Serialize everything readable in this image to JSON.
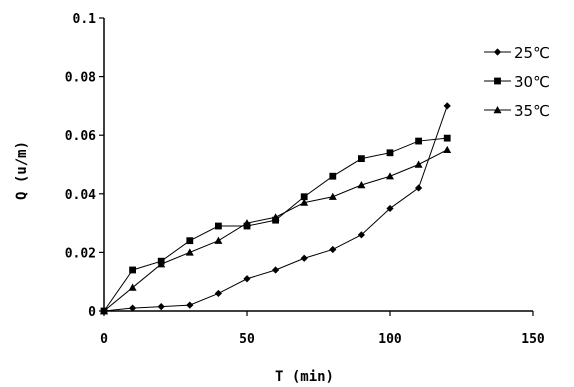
{
  "chart_data": {
    "type": "line",
    "title": "",
    "xlabel": "T (min)",
    "ylabel": "Q (u/m)",
    "xlim": [
      0,
      150
    ],
    "ylim": [
      0,
      0.1
    ],
    "xticks": [
      0,
      50,
      100,
      150
    ],
    "yticks": [
      0,
      0.02,
      0.04,
      0.06,
      0.08,
      0.1
    ],
    "xtick_labels": [
      "0",
      "50",
      "100",
      "150"
    ],
    "ytick_labels": [
      "0",
      "0.02",
      "0.04",
      "0.06",
      "0.08",
      "0.1"
    ],
    "grid": false,
    "legend_position": "top-right",
    "series": [
      {
        "name": "25℃",
        "marker": "diamond",
        "color": "#000000",
        "x": [
          0,
          10,
          20,
          30,
          40,
          50,
          60,
          70,
          80,
          90,
          100,
          110,
          120
        ],
        "y": [
          0,
          0.001,
          0.0015,
          0.002,
          0.006,
          0.011,
          0.014,
          0.018,
          0.021,
          0.026,
          0.035,
          0.042,
          0.07
        ]
      },
      {
        "name": "30℃",
        "marker": "square",
        "color": "#000000",
        "x": [
          0,
          10,
          20,
          30,
          40,
          50,
          60,
          70,
          80,
          90,
          100,
          110,
          120
        ],
        "y": [
          0,
          0.014,
          0.017,
          0.024,
          0.029,
          0.029,
          0.031,
          0.039,
          0.046,
          0.052,
          0.054,
          0.058,
          0.059
        ]
      },
      {
        "name": "35℃",
        "marker": "triangle",
        "color": "#000000",
        "x": [
          0,
          10,
          20,
          30,
          40,
          50,
          60,
          70,
          80,
          90,
          100,
          110,
          120
        ],
        "y": [
          0,
          0.008,
          0.016,
          0.02,
          0.024,
          0.03,
          0.032,
          0.037,
          0.039,
          0.043,
          0.046,
          0.05,
          0.055
        ]
      }
    ]
  }
}
